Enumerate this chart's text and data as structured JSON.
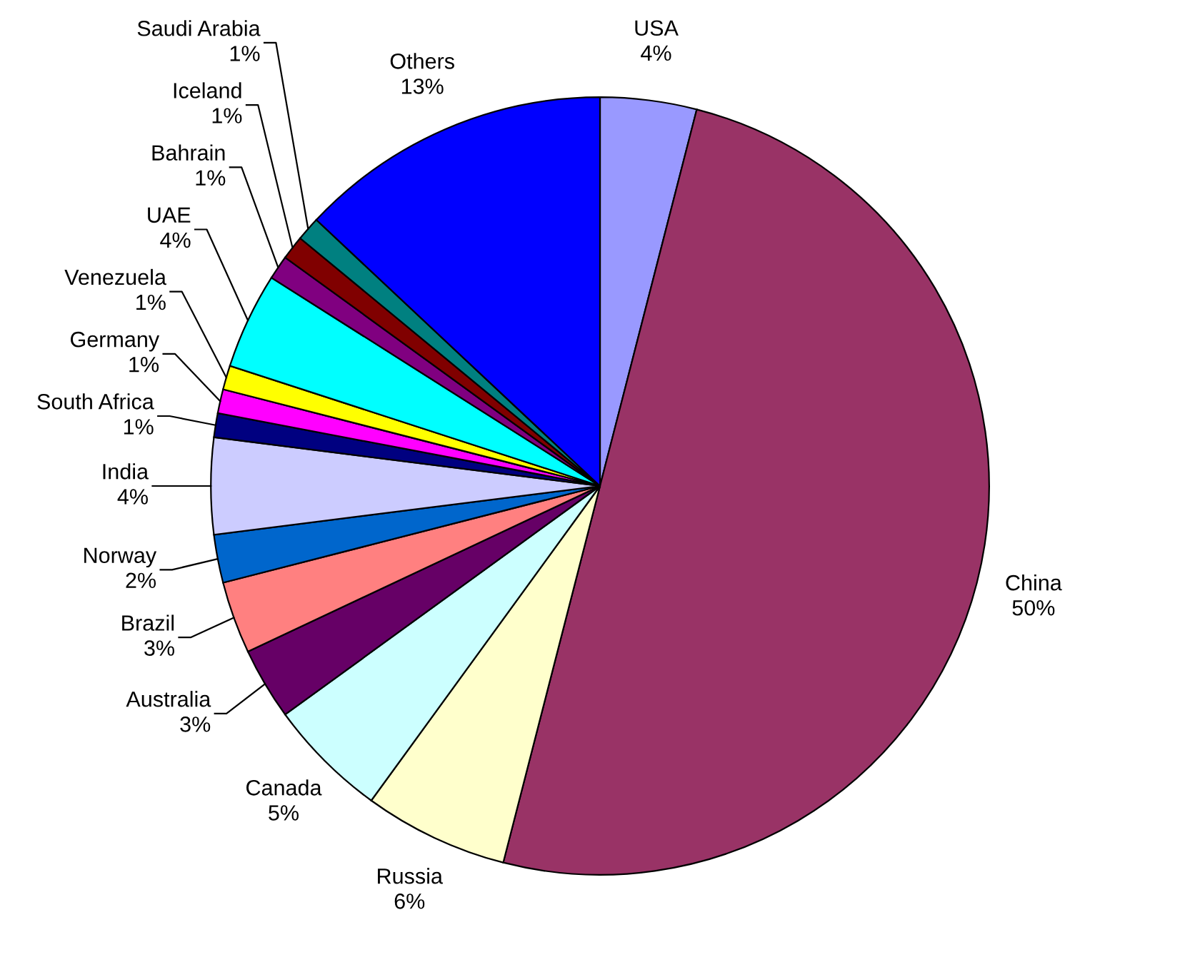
{
  "chart_data": {
    "type": "pie",
    "categories": [
      "USA",
      "China",
      "Russia",
      "Canada",
      "Australia",
      "Brazil",
      "Norway",
      "India",
      "South Africa",
      "Germany",
      "Venezuela",
      "UAE",
      "Bahrain",
      "Iceland",
      "Saudi Arabia",
      "Others"
    ],
    "values": [
      4,
      50,
      6,
      5,
      3,
      3,
      2,
      4,
      1,
      1,
      1,
      4,
      1,
      1,
      1,
      13
    ],
    "value_labels": [
      "4%",
      "50%",
      "6%",
      "5%",
      "3%",
      "3%",
      "2%",
      "4%",
      "1%",
      "1%",
      "1%",
      "4%",
      "1%",
      "1%",
      "1%",
      "13%"
    ],
    "colors": [
      "#9999ff",
      "#993366",
      "#ffffcc",
      "#ccffff",
      "#660066",
      "#ff8080",
      "#0066cc",
      "#ccccff",
      "#000080",
      "#ff00ff",
      "#ffff00",
      "#00ffff",
      "#800080",
      "#800000",
      "#008080",
      "#0000ff"
    ],
    "legend": false
  }
}
